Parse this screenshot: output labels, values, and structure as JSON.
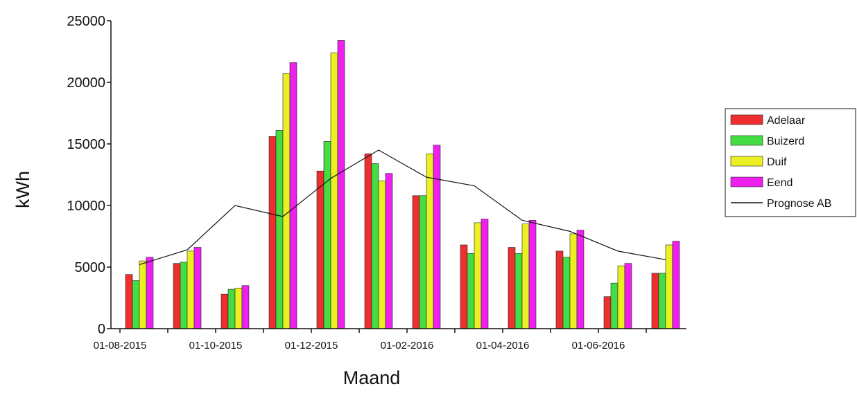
{
  "chart_data": {
    "type": "bar",
    "title": "",
    "xlabel": "Maand",
    "ylabel": "kWh",
    "ylim": [
      0,
      25000
    ],
    "yticks": [
      "0",
      "5000",
      "10000",
      "15000",
      "20000",
      "25000"
    ],
    "xtick_labels": [
      "01-08-2015",
      "01-10-2015",
      "01-12-2015",
      "01-02-2016",
      "01-04-2016",
      "01-06-2016"
    ],
    "grid": false,
    "legend_position": "right",
    "categories": [
      "2015-08",
      "2015-09",
      "2015-10",
      "2015-11",
      "2015-12",
      "2016-01",
      "2016-02",
      "2016-03",
      "2016-04",
      "2016-05",
      "2016-06",
      "2016-07"
    ],
    "series": [
      {
        "name": "Adelaar",
        "color": "#ee2f2f",
        "values": [
          4400,
          5300,
          2800,
          15600,
          12800,
          14200,
          10800,
          6800,
          6600,
          6300,
          2600,
          4500
        ]
      },
      {
        "name": "Buizerd",
        "color": "#44dd44",
        "values": [
          3900,
          5400,
          3200,
          16100,
          15200,
          13400,
          10800,
          6100,
          6100,
          5800,
          3700,
          4500
        ]
      },
      {
        "name": "Duif",
        "color": "#ecf022",
        "values": [
          5500,
          6300,
          3300,
          20700,
          22400,
          12000,
          14200,
          8600,
          8500,
          7700,
          5100,
          6800
        ]
      },
      {
        "name": "Eend",
        "color": "#ee20ee",
        "values": [
          5800,
          6600,
          3500,
          21600,
          23400,
          12600,
          14900,
          8900,
          8800,
          8000,
          5300,
          7100
        ]
      }
    ],
    "line_series": [
      {
        "name": "Prognose AB",
        "color": "#111111",
        "values": [
          5200,
          6400,
          10000,
          9100,
          12200,
          14500,
          12300,
          11600,
          8800,
          7900,
          6300,
          5600
        ]
      }
    ]
  }
}
